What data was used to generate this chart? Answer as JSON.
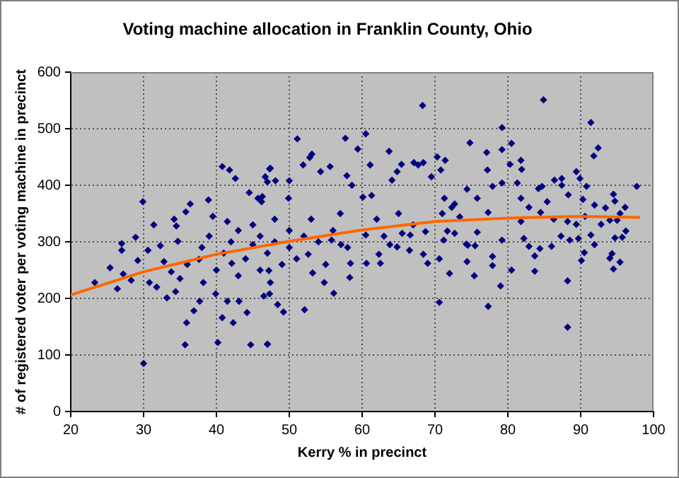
{
  "chart_data": {
    "type": "scatter",
    "title": "Voting machine allocation in Franklin County, Ohio",
    "xlabel": "Kerry % in precinct",
    "ylabel": "# of registered voter per voting machine in precinct",
    "xlim": [
      20,
      100
    ],
    "xticks": [
      20,
      30,
      40,
      50,
      60,
      70,
      80,
      90,
      100
    ],
    "ylim": [
      0,
      600
    ],
    "yticks": [
      0,
      100,
      200,
      300,
      400,
      500,
      600
    ],
    "grid": true,
    "legend": false,
    "marker": "diamond",
    "series": [
      {
        "color": "#000080",
        "x": [
          23.3,
          25.4,
          27,
          27,
          26.4,
          27.2,
          28.9,
          29.9,
          30,
          28.3,
          29.2,
          30.6,
          31.4,
          30.8,
          31.8,
          32.3,
          32.8,
          33.2,
          33.8,
          34.2,
          34.5,
          34.7,
          34.4,
          35.8,
          36.4,
          35.9,
          35.7,
          36.9,
          35,
          37.6,
          38.9,
          39.5,
          38.2,
          37.7,
          39.9,
          40.2,
          40.8,
          41.8,
          42.6,
          41.5,
          42.1,
          40.8,
          42.3,
          41.5,
          43.1,
          44.2,
          44.7,
          47,
          44.5,
          45.7,
          46.2,
          47.3,
          46.7,
          47.2,
          47.3,
          46.3,
          47.4,
          47,
          48.1,
          46.5,
          47.4,
          48.4,
          49.2,
          47,
          52.1,
          51.1,
          50,
          49.9,
          51.9,
          52.8,
          53.1,
          54.3,
          55.6,
          57.7,
          57.9,
          56.1,
          54.8,
          58.3,
          59.4,
          60.5,
          61.1,
          58.6,
          60.1,
          61.3,
          63.7,
          64.8,
          65.4,
          64.1,
          60.6,
          62.5,
          62.3,
          60.5,
          63.8,
          64.8,
          65.5,
          66.5,
          67.1,
          67.7,
          68.3,
          68.4,
          69.5,
          70.3,
          70.8,
          68.7,
          68.4,
          69,
          66.6,
          70.6,
          70.6,
          71.2,
          71.3,
          72.7,
          72.3,
          55.8,
          57.1,
          58.4,
          52.6,
          53.2,
          71.4,
          74.8,
          77.1,
          77.2,
          79.2,
          79.2,
          80.5,
          80.3,
          81.8,
          81.9,
          81.3,
          79.2,
          77.9,
          74.4,
          75.8,
          72.7,
          73.4,
          71.7,
          74.5,
          75.5,
          74.4,
          75.4,
          77.3,
          77.9,
          79,
          80.5,
          79.2,
          77.9,
          75.8,
          77.3,
          81.8,
          81.8,
          82.9,
          82.2,
          82.9,
          83.7,
          83.7,
          84.4,
          84.9,
          84.2,
          84.7,
          85.4,
          84.5,
          86,
          86.4,
          87.4,
          87.4,
          88.3,
          86.3,
          88.2,
          87.3,
          88.5,
          88.2,
          88.2,
          89.4,
          89.9,
          91.4,
          91.8,
          92.4,
          90.8,
          90.3,
          91.9,
          90.6,
          89.4,
          89.7,
          91.4,
          91.9,
          90.5,
          90.1,
          92.8,
          93.4,
          94.5,
          94.7,
          96.1,
          95.4,
          94,
          95,
          97.7,
          96.2,
          95.7,
          94.7,
          94,
          94.5,
          95.4,
          94.3,
          72,
          74.3,
          36,
          38,
          39,
          40,
          41,
          42,
          43,
          43,
          44,
          45,
          45,
          46,
          46,
          47,
          48,
          48,
          49,
          50,
          50,
          51,
          52,
          53,
          54,
          55,
          56,
          57,
          58,
          62,
          63,
          65,
          67,
          71
        ],
        "values": [
          228,
          254,
          297,
          285,
          217,
          243,
          308,
          371,
          85,
          232,
          267,
          285,
          330,
          228,
          220,
          293,
          265,
          201,
          247,
          340,
          328,
          301,
          212,
          353,
          367,
          157,
          118,
          178,
          235,
          269,
          374,
          345,
          228,
          195,
          208,
          122,
          433,
          427,
          412,
          336,
          262,
          166,
          157,
          195,
          195,
          175,
          118,
          119,
          387,
          377,
          371,
          429,
          415,
          249,
          208,
          380,
          430,
          406,
          408,
          204,
          228,
          189,
          176,
          119,
          180,
          482,
          408,
          377,
          436,
          449,
          455,
          424,
          433,
          483,
          417,
          209,
          228,
          237,
          464,
          491,
          436,
          400,
          379,
          382,
          460,
          424,
          437,
          409,
          262,
          262,
          278,
          312,
          295,
          291,
          315,
          285,
          440,
          436,
          541,
          440,
          415,
          450,
          427,
          318,
          278,
          262,
          312,
          193,
          270,
          303,
          377,
          315,
          361,
          303,
          295,
          262,
          278,
          245,
          444,
          475,
          458,
          427,
          502,
          463,
          474,
          437,
          444,
          428,
          404,
          404,
          398,
          393,
          377,
          367,
          344,
          319,
          294,
          293,
          265,
          240,
          186,
          258,
          222,
          250,
          303,
          274,
          317,
          352,
          377,
          336,
          361,
          306,
          292,
          275,
          248,
          288,
          551,
          394,
          398,
          371,
          352,
          292,
          409,
          412,
          400,
          383,
          340,
          336,
          310,
          303,
          231,
          149,
          424,
          412,
          511,
          452,
          466,
          398,
          375,
          365,
          345,
          331,
          306,
          312,
          295,
          281,
          267,
          331,
          360,
          384,
          372,
          361,
          350,
          338,
          338,
          398,
          319,
          308,
          307,
          271,
          252,
          264,
          279,
          244,
          296,
          260,
          290,
          310,
          250,
          280,
          300,
          320,
          240,
          270,
          295,
          330,
          250,
          310,
          280,
          300,
          340,
          260,
          290,
          320,
          270,
          310,
          340,
          300,
          260,
          320,
          350,
          290,
          340,
          310,
          350,
          330,
          350
        ]
      },
      {
        "type": "line",
        "color": "#ff6600",
        "marker": "none",
        "x": [
          20,
          30,
          40,
          50,
          60,
          70,
          80,
          90,
          98
        ],
        "values": [
          206,
          247,
          278,
          301,
          321,
          336,
          342,
          345,
          343
        ]
      }
    ]
  }
}
